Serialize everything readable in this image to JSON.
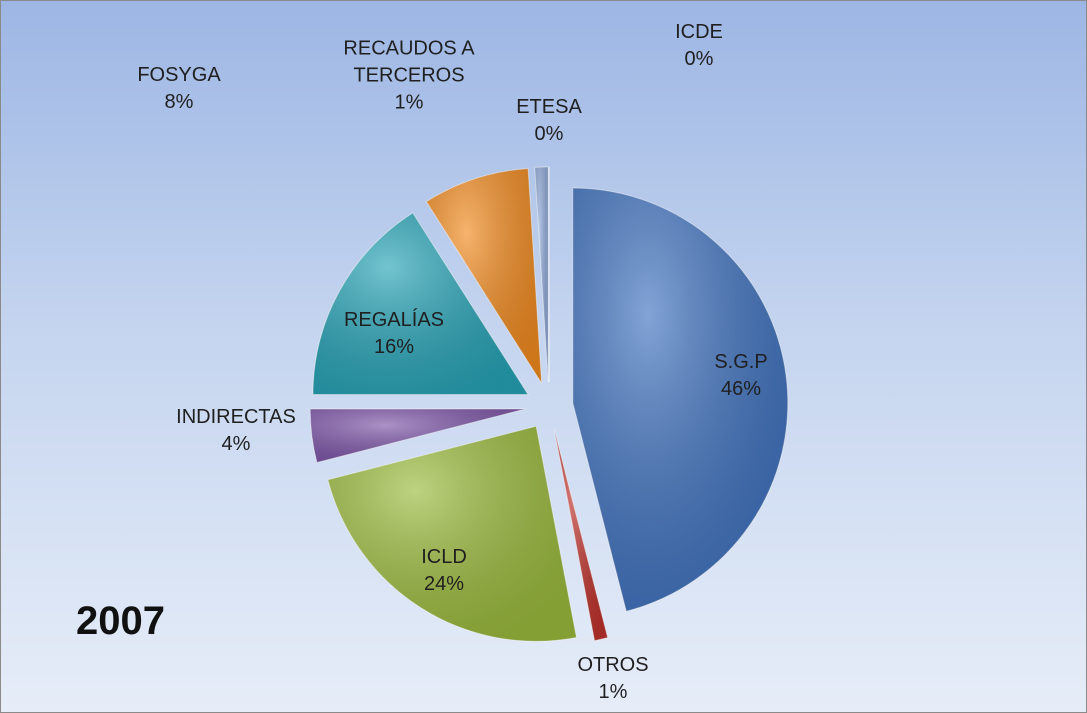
{
  "chart_data": {
    "type": "pie",
    "title": "2007",
    "categories": [
      "S.G.P",
      "OTROS",
      "ICLD",
      "INDIRECTAS",
      "REGALÍAS",
      "FOSYGA",
      "RECAUDOS A TERCEROS",
      "ETESA",
      "ICDE"
    ],
    "values": [
      46,
      1,
      24,
      4,
      16,
      8,
      1,
      0,
      0
    ],
    "value_labels": [
      "46%",
      "1%",
      "24%",
      "4%",
      "16%",
      "8%",
      "1%",
      "0%",
      "0%"
    ],
    "colors": [
      "#3f72bf",
      "#c0332d",
      "#9bbb3c",
      "#7e56a9",
      "#27a4b7",
      "#f28b1f",
      "#8fa9d9",
      "#a2b15e",
      "#d2c16c"
    ]
  }
}
